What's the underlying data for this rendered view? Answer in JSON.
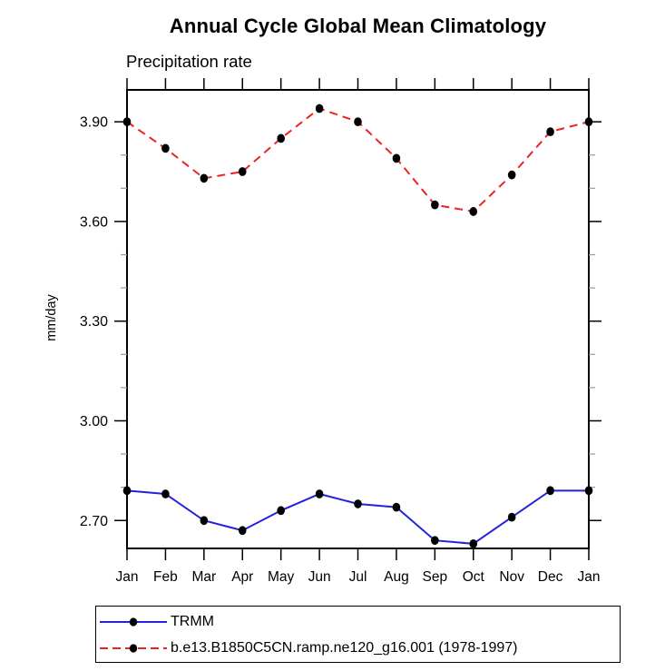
{
  "chart_data": {
    "type": "line",
    "title": "Annual Cycle Global Mean Climatology",
    "subtitle": "Precipitation rate",
    "ylabel": "mm/day",
    "xlabel": "",
    "categories": [
      "Jan",
      "Feb",
      "Mar",
      "Apr",
      "May",
      "Jun",
      "Jul",
      "Aug",
      "Sep",
      "Oct",
      "Nov",
      "Dec",
      "Jan"
    ],
    "series": [
      {
        "name": "TRMM",
        "color": "#2222dd",
        "line_style": "solid",
        "marker": "filled-circle",
        "marker_color": "#000000",
        "values": [
          2.79,
          2.78,
          2.7,
          2.67,
          2.73,
          2.78,
          2.75,
          2.74,
          2.64,
          2.63,
          2.71,
          2.79,
          2.79
        ]
      },
      {
        "name": "b.e13.B1850C5CN.ramp.ne120_g16.001 (1978-1997)",
        "color": "#ee2222",
        "line_style": "dashed",
        "marker": "filled-circle",
        "marker_color": "#000000",
        "values": [
          3.9,
          3.82,
          3.73,
          3.75,
          3.85,
          3.94,
          3.9,
          3.79,
          3.65,
          3.63,
          3.74,
          3.87,
          3.9
        ]
      }
    ],
    "y_ticks": [
      "2.70",
      "3.00",
      "3.30",
      "3.60",
      "3.90"
    ],
    "y_minor_ticks": [
      2.8,
      2.9,
      3.1,
      3.2,
      3.4,
      3.5,
      3.7,
      3.8
    ],
    "ylim": [
      2.616,
      3.996
    ],
    "grid": false,
    "legend_position": "bottom-left",
    "units": "mm/day"
  }
}
